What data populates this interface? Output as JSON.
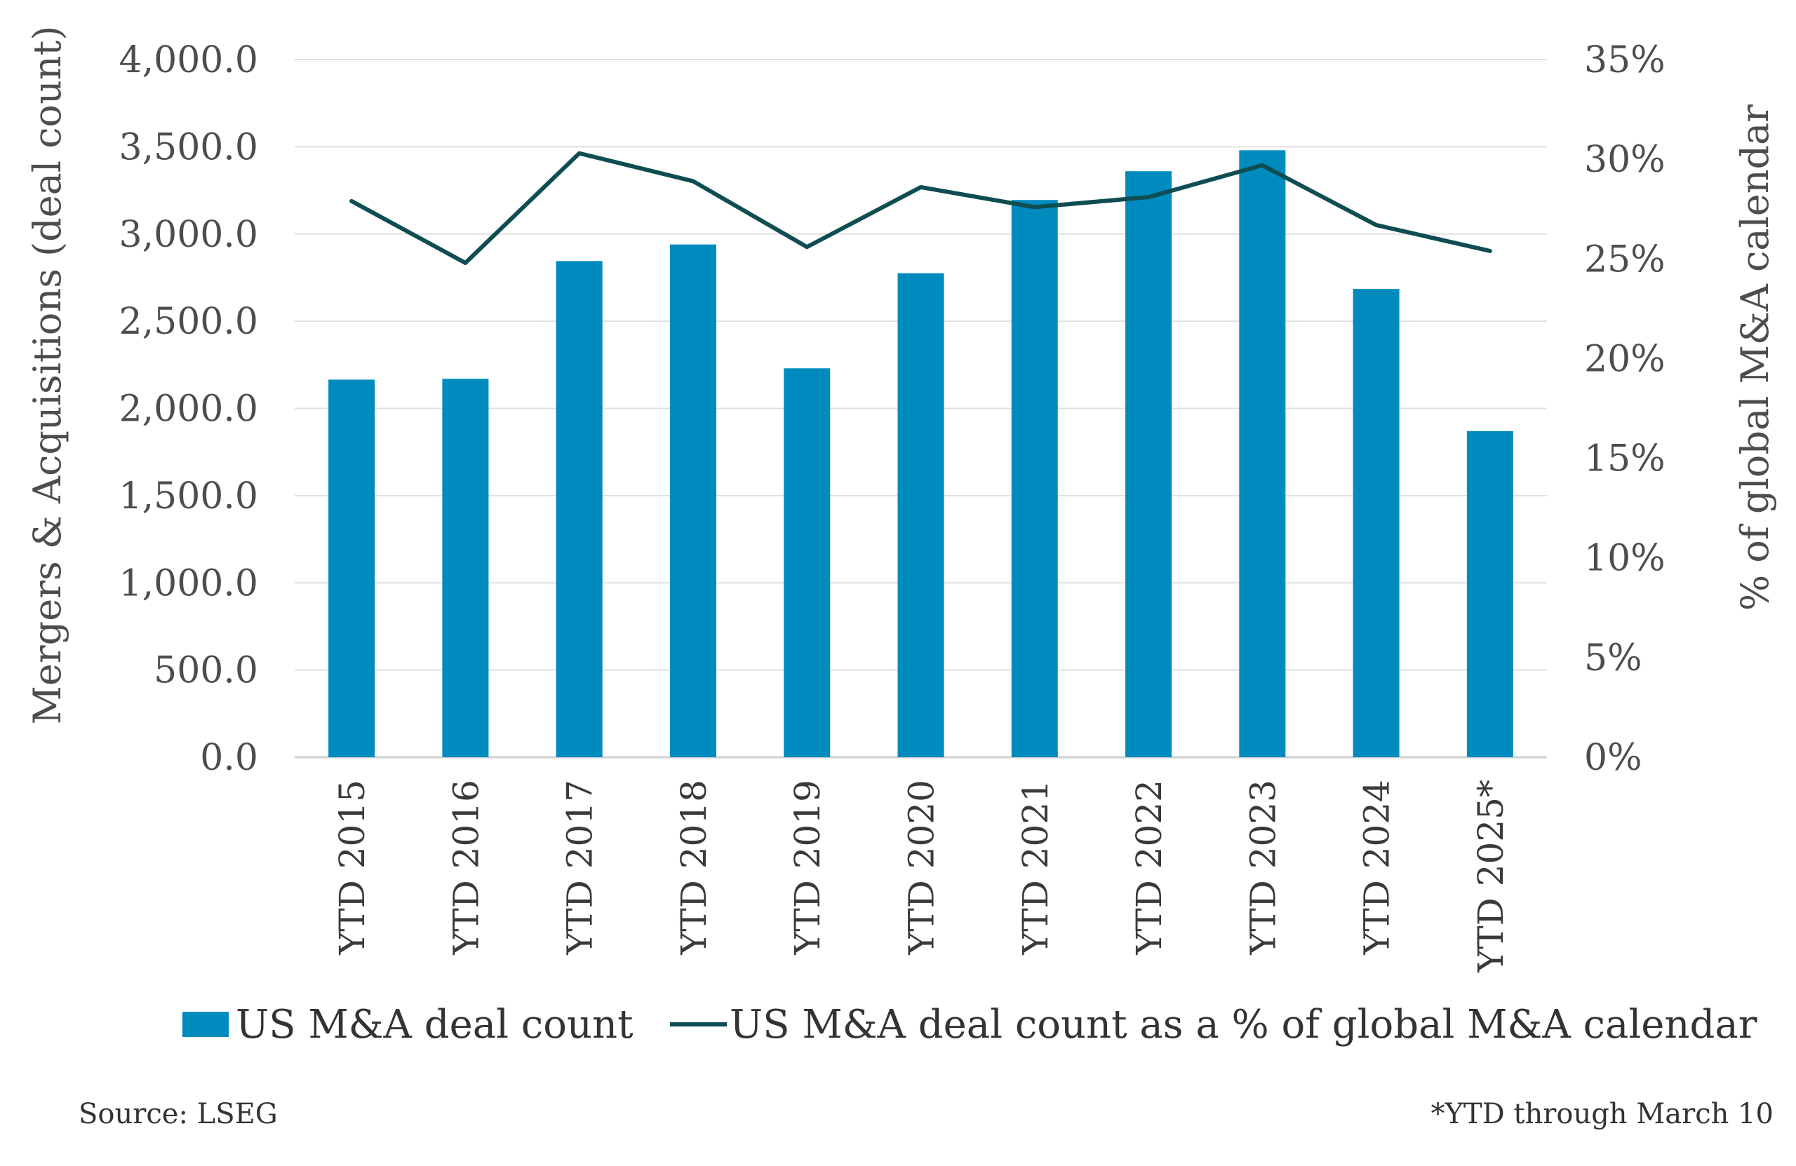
{
  "chart_data": {
    "type": "bar",
    "categories": [
      "YTD 2015",
      "YTD 2016",
      "YTD 2017",
      "YTD 2018",
      "YTD 2019",
      "YTD 2020",
      "YTD 2021",
      "YTD 2022",
      "YTD 2023",
      "YTD 2024",
      "YTD 2025*"
    ],
    "series": [
      {
        "name": "US M&A deal count",
        "type": "bar",
        "axis": "left",
        "color": "#008bbf",
        "values": [
          2165,
          2170,
          2845,
          2940,
          2230,
          2775,
          3195,
          3360,
          3480,
          2685,
          1870
        ]
      },
      {
        "name": "US M&A deal count as a % of global M&A calendar",
        "type": "line",
        "axis": "right",
        "color": "#0f4d52",
        "values": [
          27.9,
          24.8,
          30.3,
          28.9,
          25.6,
          28.6,
          27.6,
          28.1,
          29.7,
          26.7,
          25.4
        ]
      }
    ],
    "ylabel": "Mergers & Acquisitions (deal count)",
    "y2label": "% of global M&A calendar",
    "ylim": [
      0,
      4000
    ],
    "y2lim": [
      0,
      35
    ],
    "yticks": [
      "0.0",
      "500.0",
      "1,000.0",
      "1,500.0",
      "2,000.0",
      "2,500.0",
      "3,000.0",
      "3,500.0",
      "4,000.0"
    ],
    "y2ticks": [
      "0%",
      "5%",
      "10%",
      "15%",
      "20%",
      "25%",
      "30%",
      "35%"
    ],
    "grid": true,
    "legend_position": "bottom"
  },
  "footer": {
    "source": "Source:  LSEG",
    "note": "*YTD through March 10"
  }
}
